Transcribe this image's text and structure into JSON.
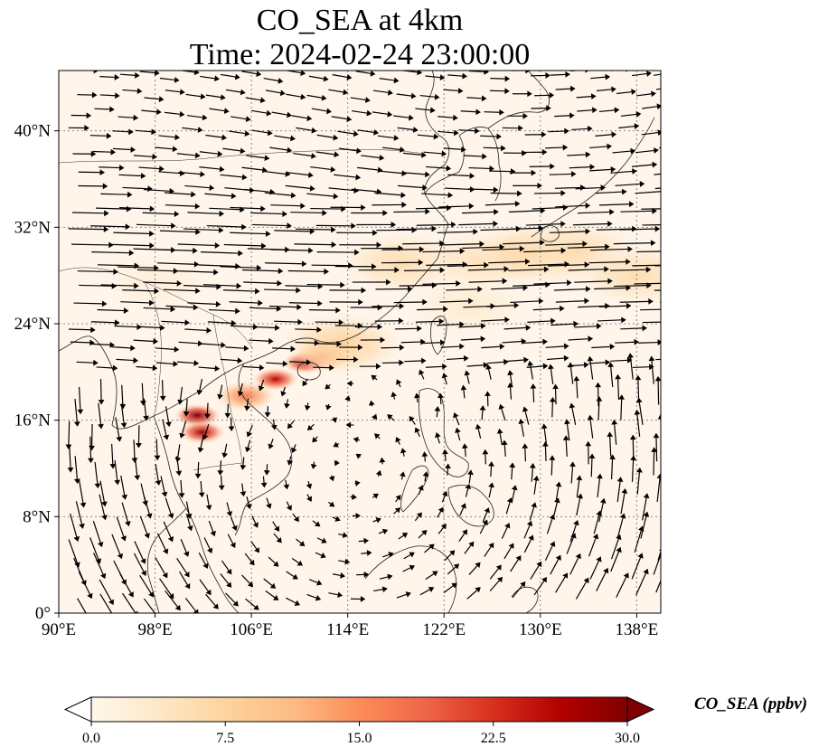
{
  "title": {
    "line1": "CO_SEA at 4km",
    "line2": "Time: 2024-02-24 23:00:00"
  },
  "map": {
    "lon_range": [
      90,
      140
    ],
    "lat_range": [
      0,
      45
    ],
    "x_ticks": [
      {
        "value": 90,
        "label": "90°E"
      },
      {
        "value": 98,
        "label": "98°E"
      },
      {
        "value": 106,
        "label": "106°E"
      },
      {
        "value": 114,
        "label": "114°E"
      },
      {
        "value": 122,
        "label": "122°E"
      },
      {
        "value": 130,
        "label": "130°E"
      },
      {
        "value": 138,
        "label": "138°E"
      }
    ],
    "y_ticks": [
      {
        "value": 0,
        "label": "0°"
      },
      {
        "value": 8,
        "label": "8°N"
      },
      {
        "value": 16,
        "label": "16°N"
      },
      {
        "value": 24,
        "label": "24°N"
      },
      {
        "value": 32,
        "label": "32°N"
      },
      {
        "value": 40,
        "label": "40°N"
      }
    ],
    "gridlines": true,
    "background_color": "#fff5eb",
    "plumes": [
      {
        "lon": 101.5,
        "lat": 16.4,
        "value": 30
      },
      {
        "lon": 101.9,
        "lat": 15.0,
        "value": 28
      },
      {
        "lon": 105.5,
        "lat": 18.0,
        "value": 17
      },
      {
        "lon": 108.0,
        "lat": 19.4,
        "value": 26
      },
      {
        "lon": 110.5,
        "lat": 20.8,
        "value": 28
      },
      {
        "lon": 112.0,
        "lat": 21.3,
        "value": 18
      },
      {
        "lon": 113.5,
        "lat": 22.3,
        "value": 8
      },
      {
        "lon": 118.5,
        "lat": 29.0,
        "value": 6
      },
      {
        "lon": 125.0,
        "lat": 29.2,
        "value": 5
      },
      {
        "lon": 129.5,
        "lat": 29.8,
        "value": 8
      },
      {
        "lon": 133.0,
        "lat": 30.0,
        "value": 6
      },
      {
        "lon": 138.0,
        "lat": 28.0,
        "value": 6
      },
      {
        "lon": 124.0,
        "lat": 25.5,
        "value": 3
      },
      {
        "lon": 98.0,
        "lat": 27.5,
        "value": 2
      }
    ]
  },
  "colorbar": {
    "min": 0.0,
    "max": 30.0,
    "colormap": "OrRd",
    "colors": [
      "#fff7ec",
      "#fee8c8",
      "#fdd49e",
      "#fdbb84",
      "#fc8d59",
      "#ef6548",
      "#d7301f",
      "#b30000",
      "#7f0000"
    ],
    "ticks": [
      "0.0",
      "7.5",
      "15.0",
      "22.5",
      "30.0"
    ],
    "label": "CO_SEA (ppbv)",
    "extend": "both"
  }
}
